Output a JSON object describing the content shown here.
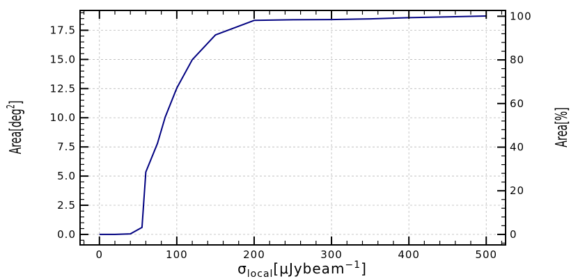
{
  "chart_data": {
    "type": "line",
    "title": "",
    "xlabel": {
      "base": "σ",
      "sub": "local",
      "text": "[μJybeam",
      "sup": "−1",
      "close": "]"
    },
    "ylabel_left": {
      "text": "Area[deg",
      "sup": "2",
      "close": "]"
    },
    "ylabel_right": "Area[%]",
    "xlim": [
      -25,
      525
    ],
    "ylim_left": [
      -0.9,
      19.2
    ],
    "ylim_right_percent_at_y": [
      [
        0,
        0.0
      ],
      [
        100,
        18.7
      ]
    ],
    "x_ticks": [
      "0",
      "100",
      "200",
      "300",
      "400",
      "500"
    ],
    "y_ticks_left": [
      "0.0",
      "2.5",
      "5.0",
      "7.5",
      "10.0",
      "12.5",
      "15.0",
      "17.5"
    ],
    "y_ticks_right": [
      "0",
      "20",
      "40",
      "60",
      "80",
      "100"
    ],
    "grid": true,
    "line_color": "#000080",
    "series": [
      {
        "x": [
          0,
          20,
          40,
          55,
          60,
          75,
          85,
          100,
          120,
          150,
          200,
          250,
          300,
          350,
          400,
          450,
          500
        ],
        "y": [
          0.0,
          0.0,
          0.05,
          0.6,
          5.35,
          7.8,
          10.05,
          12.55,
          14.98,
          17.1,
          18.35,
          18.4,
          18.42,
          18.48,
          18.58,
          18.65,
          18.72
        ]
      }
    ]
  }
}
